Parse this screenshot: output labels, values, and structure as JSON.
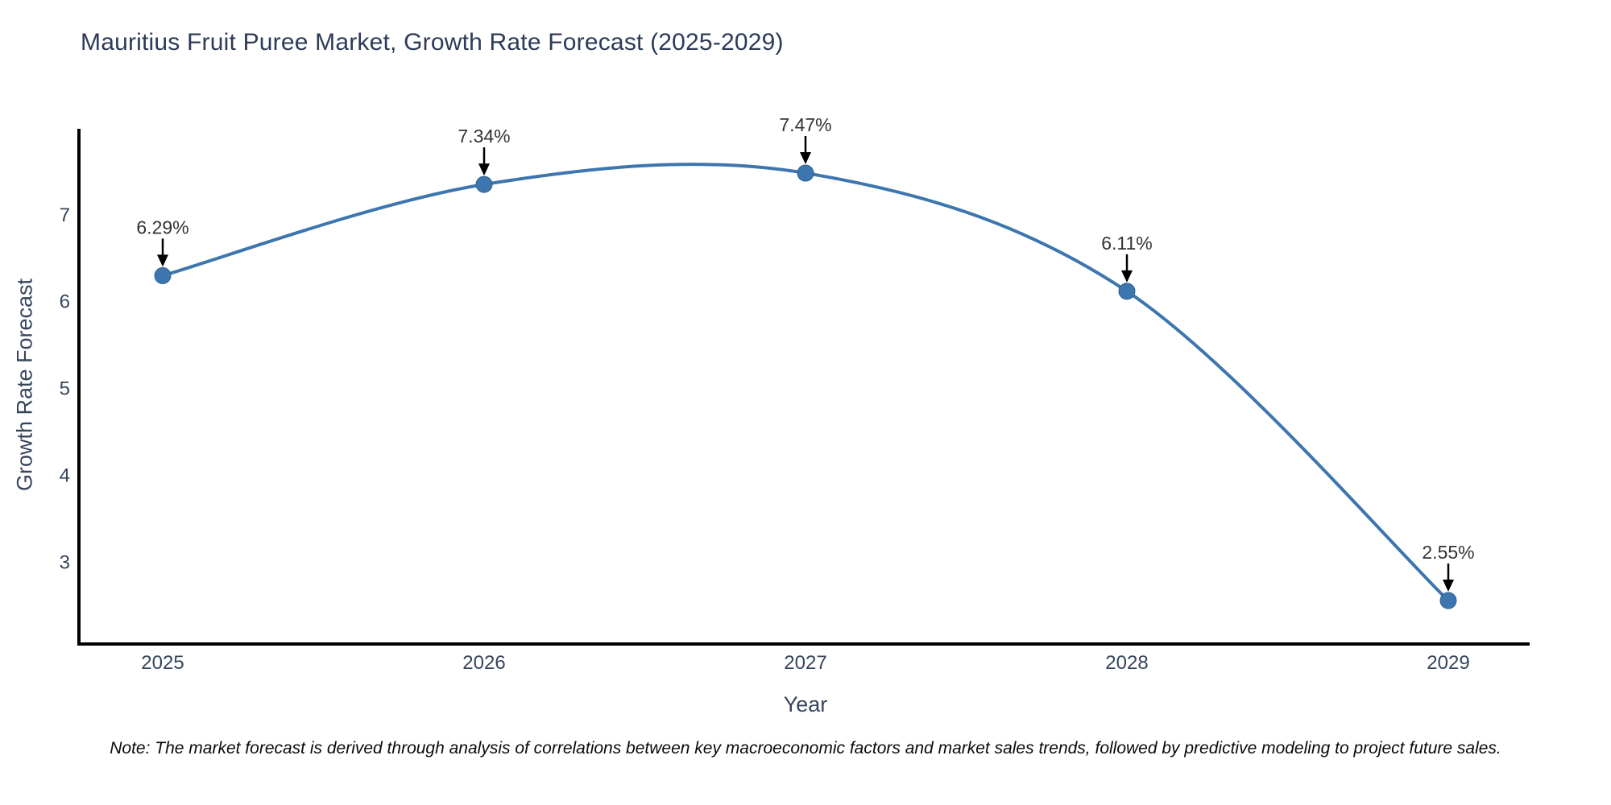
{
  "chart_data": {
    "type": "line",
    "title": "Mauritius Fruit Puree Market, Growth Rate Forecast (2025-2029)",
    "categories": [
      "2025",
      "2026",
      "2027",
      "2028",
      "2029"
    ],
    "values": [
      6.29,
      7.34,
      7.47,
      6.11,
      2.55
    ],
    "point_labels": [
      "6.29%",
      "7.34%",
      "7.47%",
      "6.11%",
      "2.55%"
    ],
    "xlabel": "Year",
    "ylabel": "Growth Rate Forecast",
    "yticks": [
      7,
      6,
      5,
      4,
      3
    ],
    "ylim": [
      2.05,
      7.98
    ],
    "line_shape": "spline",
    "grid": false,
    "legend": false,
    "note": "Note: The market forecast is derived through analysis of correlations between key macroeconomic factors and market sales trends, followed by predictive modeling to project future sales.",
    "colors": {
      "line": "#3d76ae",
      "marker": "#3d76ae",
      "marker_edge": "#2e5f8f",
      "axis_line": "#000000",
      "tick_text": "#36455c",
      "title_text": "#2c3b58",
      "annotation_text": "#333333",
      "annotation_arrow": "#000000"
    }
  }
}
